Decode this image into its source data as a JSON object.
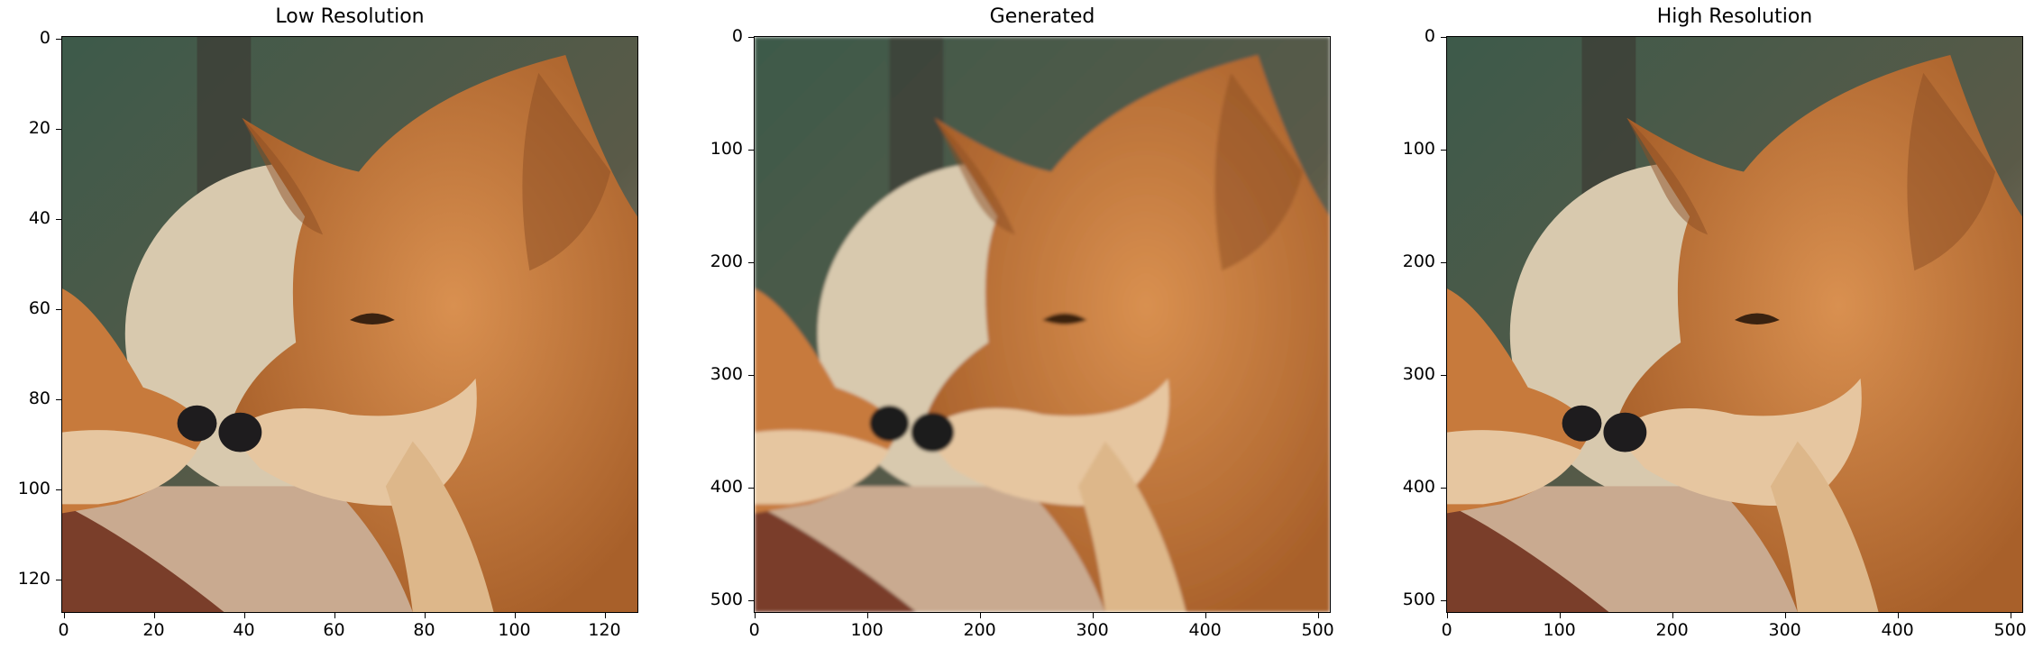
{
  "panels": [
    {
      "title": "Low Resolution",
      "image": "dingo-low-resolution",
      "y_ticks": [
        "0",
        "20",
        "40",
        "60",
        "80",
        "100",
        "120"
      ],
      "x_ticks": [
        "0",
        "20",
        "40",
        "60",
        "80",
        "100",
        "120"
      ],
      "axis_max": 128
    },
    {
      "title": "Generated",
      "image": "dingo-generated",
      "y_ticks": [
        "0",
        "100",
        "200",
        "300",
        "400",
        "500"
      ],
      "x_ticks": [
        "0",
        "100",
        "200",
        "300",
        "400",
        "500"
      ],
      "axis_max": 512
    },
    {
      "title": "High Resolution",
      "image": "dingo-high-resolution",
      "y_ticks": [
        "0",
        "100",
        "200",
        "300",
        "400",
        "500"
      ],
      "x_ticks": [
        "0",
        "100",
        "200",
        "300",
        "400",
        "500"
      ],
      "axis_max": 512
    }
  ],
  "colors": {
    "fur": "#c77a3c",
    "fur_light": "#e6c6a0",
    "background_green": "#3d5a4a",
    "rock": "#d8c9ae",
    "ground": "#c9aa90",
    "nose": "#1e1c1e"
  }
}
